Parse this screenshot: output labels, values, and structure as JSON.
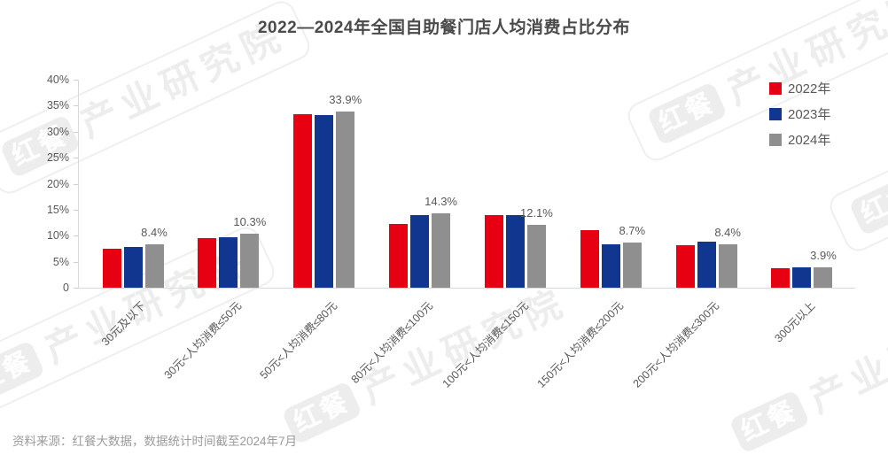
{
  "page": {
    "title": "2022—2024年全国自助餐门店人均消费占比分布",
    "source": "资料来源：红餐大数据，数据统计时间截至2024年7月"
  },
  "watermark": {
    "logo": "红餐",
    "brand": "产业研究院"
  },
  "legend": [
    {
      "label": "2022年",
      "color": "#e60012"
    },
    {
      "label": "2023年",
      "color": "#10368f"
    },
    {
      "label": "2024年",
      "color": "#8f8f8f"
    }
  ],
  "chart_data": {
    "type": "bar",
    "title": "2022—2024年全国自助餐门店人均消费占比分布",
    "categories": [
      "30元及以下",
      "30元<人均消费≤50元",
      "50元<人均消费≤80元",
      "80元<人均消费≤100元",
      "100元<人均消费≤150元",
      "150元<人均消费≤200元",
      "200元<人均消费≤300元",
      "300元以上"
    ],
    "series": [
      {
        "name": "2022年",
        "color": "#e60012",
        "values": [
          7.5,
          9.5,
          33.4,
          12.2,
          13.9,
          11.1,
          8.2,
          3.7
        ]
      },
      {
        "name": "2023年",
        "color": "#10368f",
        "values": [
          7.9,
          9.7,
          33.2,
          13.9,
          14.0,
          8.3,
          8.9,
          4.0
        ]
      },
      {
        "name": "2024年",
        "color": "#8f8f8f",
        "values": [
          8.4,
          10.3,
          33.9,
          14.3,
          12.1,
          8.7,
          8.4,
          3.9
        ]
      }
    ],
    "value_labels": [
      "8.4%",
      "10.3%",
      "33.9%",
      "14.3%",
      "12.1%",
      "8.7%",
      "8.4%",
      "3.9%"
    ],
    "value_label_series": "2024年",
    "xlabel": "",
    "ylabel": "",
    "ylim": [
      0,
      40
    ],
    "yticks": [
      "0",
      "5%",
      "10%",
      "15%",
      "20%",
      "25%",
      "30%",
      "35%",
      "40%"
    ],
    "grid": false,
    "legend_position": "top-right"
  }
}
